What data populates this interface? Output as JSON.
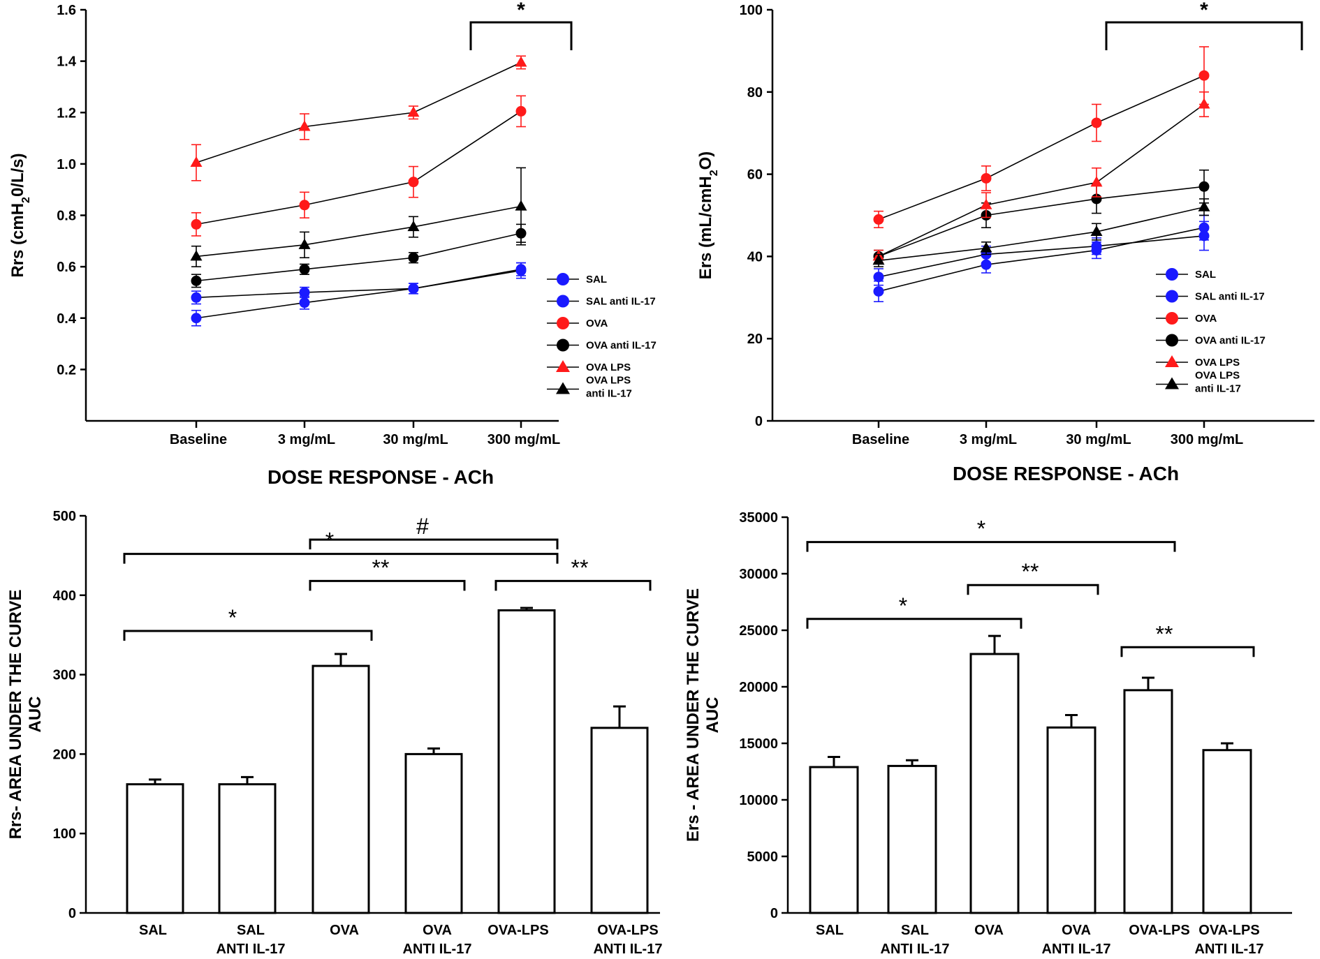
{
  "chart_data": [
    {
      "id": "rrs_line",
      "type": "line",
      "categories": [
        "Baseline",
        "3 mg/mL",
        "30 mg/mL",
        "300 mg/mL"
      ],
      "xlabel": "DOSE RESPONSE - ACh",
      "ylabel": "Rrs (cmH20/L/s)",
      "ylabel_parts": [
        "Rrs (cmH",
        "2",
        "0/L/s)"
      ],
      "ylim": [
        0,
        1.6
      ],
      "yticks": [
        "0.2",
        "0.4",
        "0.6",
        "0.8",
        "1.0",
        "1.2",
        "1.4",
        "1.6"
      ],
      "series": [
        {
          "name": "SAL",
          "legend": [
            "SAL"
          ],
          "color": "#1a1aff",
          "marker": "circle",
          "values": [
            0.4,
            0.46,
            0.515,
            0.585
          ],
          "errors": [
            0.03,
            0.025,
            0.02,
            0.03
          ]
        },
        {
          "name": "SAL anti IL-17",
          "legend": [
            "SAL anti IL-17"
          ],
          "color": "#1a1aff",
          "marker": "circle",
          "values": [
            0.48,
            0.5,
            0.515,
            0.59
          ],
          "errors": [
            0.025,
            0.02,
            0.02,
            0.025
          ]
        },
        {
          "name": "OVA",
          "legend": [
            "OVA"
          ],
          "color": "#ff1a1a",
          "marker": "circle",
          "values": [
            0.765,
            0.84,
            0.93,
            1.205
          ],
          "errors": [
            0.045,
            0.05,
            0.06,
            0.06
          ]
        },
        {
          "name": "OVA anti IL-17",
          "legend": [
            "OVA anti IL-17"
          ],
          "color": "#000000",
          "marker": "circle",
          "values": [
            0.545,
            0.59,
            0.635,
            0.73
          ],
          "errors": [
            0.025,
            0.02,
            0.02,
            0.035
          ]
        },
        {
          "name": "OVA LPS",
          "legend": [
            "OVA LPS"
          ],
          "color": "#ff1a1a",
          "marker": "triangle",
          "values": [
            1.005,
            1.145,
            1.2,
            1.395
          ],
          "errors": [
            0.07,
            0.05,
            0.025,
            0.025
          ]
        },
        {
          "name": "OVA LPS anti IL-17",
          "legend": [
            "OVA LPS",
            "anti IL-17"
          ],
          "color": "#000000",
          "marker": "triangle",
          "values": [
            0.64,
            0.685,
            0.755,
            0.835
          ],
          "errors": [
            0.04,
            0.05,
            0.04,
            0.15
          ]
        }
      ],
      "annotations": [
        {
          "text": "*",
          "from": 3,
          "to": 3
        }
      ]
    },
    {
      "id": "ers_line",
      "type": "line",
      "categories": [
        "Baseline",
        "3 mg/mL",
        "30 mg/mL",
        "300 mg/mL"
      ],
      "xlabel": "DOSE RESPONSE - ACh",
      "ylabel": "Ers (mL/cmH2O)",
      "ylabel_parts": [
        "Ers (mL/cmH",
        "2",
        "O)"
      ],
      "ylim": [
        0,
        100
      ],
      "yticks": [
        "0",
        "20",
        "40",
        "60",
        "80",
        "100"
      ],
      "series": [
        {
          "name": "SAL",
          "legend": [
            "SAL"
          ],
          "color": "#1a1aff",
          "marker": "circle",
          "values": [
            31.5,
            38,
            41.5,
            47
          ],
          "errors": [
            2.5,
            2,
            2,
            3
          ]
        },
        {
          "name": "SAL anti IL-17",
          "legend": [
            "SAL anti IL-17"
          ],
          "color": "#1a1aff",
          "marker": "circle",
          "values": [
            35,
            40.5,
            42.5,
            45
          ],
          "errors": [
            2,
            2,
            2,
            3.5
          ]
        },
        {
          "name": "OVA",
          "legend": [
            "OVA"
          ],
          "color": "#ff1a1a",
          "marker": "circle",
          "values": [
            49,
            59,
            72.5,
            84
          ],
          "errors": [
            2,
            3,
            4.5,
            7
          ]
        },
        {
          "name": "OVA anti IL-17",
          "legend": [
            "OVA anti IL-17"
          ],
          "color": "#000000",
          "marker": "circle",
          "values": [
            40,
            50,
            54,
            57
          ],
          "errors": [
            1.5,
            3,
            3.5,
            4
          ]
        },
        {
          "name": "OVA LPS",
          "legend": [
            "OVA LPS"
          ],
          "color": "#ff1a1a",
          "marker": "triangle",
          "values": [
            40,
            52.5,
            58,
            77
          ],
          "errors": [
            1.5,
            3,
            3.5,
            3
          ]
        },
        {
          "name": "OVA LPS anti IL-17",
          "legend": [
            "OVA LPS",
            "anti IL-17"
          ],
          "color": "#000000",
          "marker": "triangle",
          "values": [
            39,
            42,
            46,
            52
          ],
          "errors": [
            1.5,
            1.5,
            2,
            2
          ]
        }
      ],
      "annotations": [
        {
          "text": "*",
          "from": 3,
          "to": 3
        }
      ]
    },
    {
      "id": "rrs_auc",
      "type": "bar",
      "categories": [
        [
          "SAL"
        ],
        [
          "SAL",
          "ANTI IL-17"
        ],
        [
          "OVA"
        ],
        [
          "OVA",
          "ANTI IL-17"
        ],
        [
          "OVA-LPS"
        ],
        [
          "OVA-LPS",
          "ANTI IL-17"
        ]
      ],
      "ylabel": "Rrs- AREA UNDER THE CURVE",
      "ylabel2": "AUC",
      "ylim": [
        0,
        500
      ],
      "yticks": [
        "0",
        "100",
        "200",
        "300",
        "400",
        "500"
      ],
      "values": [
        162,
        162,
        311,
        200,
        381,
        233
      ],
      "errors": [
        6,
        9,
        15,
        7,
        3,
        27
      ],
      "brackets": [
        {
          "text": "#",
          "from": 2,
          "to": 4,
          "y": 470
        },
        {
          "text": "*",
          "from": 0,
          "to": 4,
          "y": 452
        },
        {
          "text": "**",
          "from": 2,
          "to": 3,
          "y": 418
        },
        {
          "text": "**",
          "from": 4,
          "to": 5,
          "y": 418
        },
        {
          "text": "*",
          "from": 0,
          "to": 2,
          "y": 355
        }
      ]
    },
    {
      "id": "ers_auc",
      "type": "bar",
      "categories": [
        [
          "SAL"
        ],
        [
          "SAL",
          "ANTI IL-17"
        ],
        [
          "OVA"
        ],
        [
          "OVA",
          "ANTI IL-17"
        ],
        [
          "OVA-LPS"
        ],
        [
          "OVA-LPS",
          "ANTI IL-17"
        ]
      ],
      "ylabel": "Ers - AREA UNDER THE CURVE",
      "ylabel2": "AUC",
      "ylim": [
        0,
        35000
      ],
      "yticks": [
        "0",
        "5000",
        "10000",
        "15000",
        "20000",
        "25000",
        "30000",
        "35000"
      ],
      "values": [
        12900,
        13000,
        22900,
        16400,
        19700,
        14400
      ],
      "errors": [
        900,
        500,
        1600,
        1100,
        1100,
        600
      ],
      "brackets": [
        {
          "text": "*",
          "from": 0,
          "to": 4,
          "y": 32800
        },
        {
          "text": "**",
          "from": 2,
          "to": 3,
          "y": 29000
        },
        {
          "text": "*",
          "from": 0,
          "to": 2,
          "y": 26000
        },
        {
          "text": "**",
          "from": 4,
          "to": 5,
          "y": 23500
        }
      ]
    }
  ]
}
